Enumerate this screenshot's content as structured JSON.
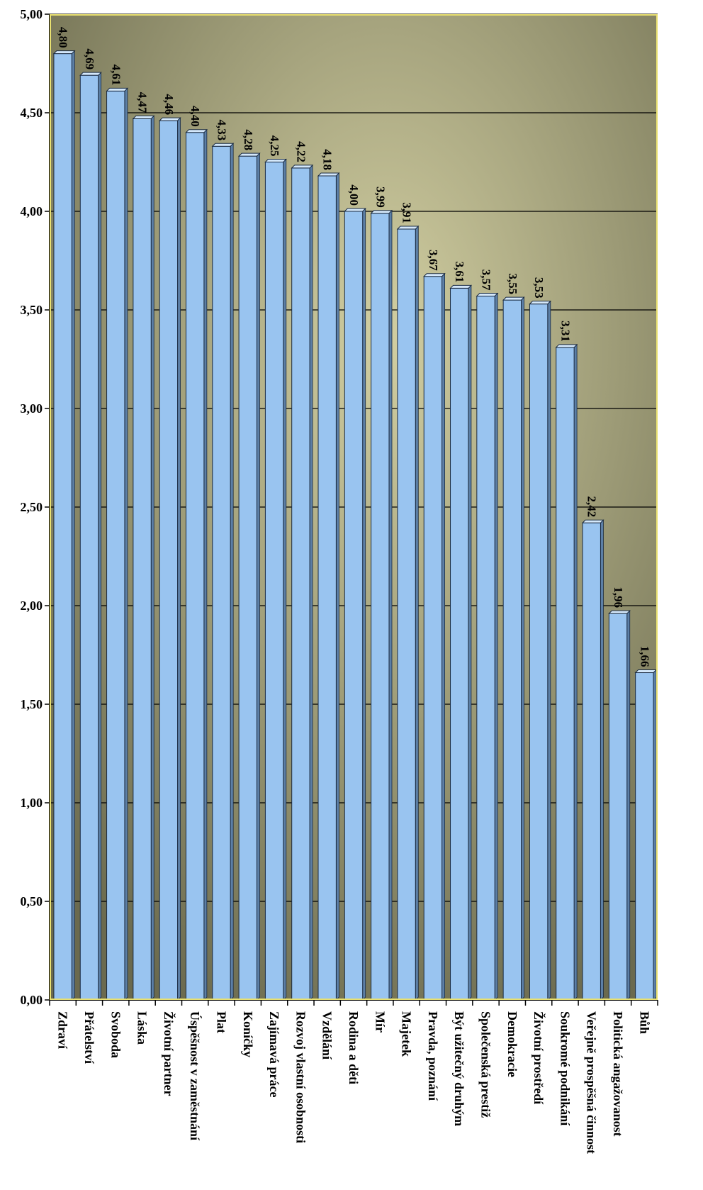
{
  "chart_data": {
    "type": "bar",
    "orientation": "vertical",
    "categories": [
      "Zdraví",
      "Přátelství",
      "Svoboda",
      "Láska",
      "Životní partner",
      "Úspěšnost v zaměstnání",
      "Plat",
      "Koníčky",
      "Zajímavá práce",
      "Rozvoj vlastní osobnosti",
      "Vzdělání",
      "Rodina a děti",
      "Mír",
      "Majetek",
      "Pravda, poznání",
      "Být užitečný druhým",
      "Společenská prestiž",
      "Demokracie",
      "Životní prostředí",
      "Soukromé podnikání",
      "Veřejně prospěšná činnost",
      "Politická angažovanost",
      "Bůh"
    ],
    "values": [
      4.8,
      4.69,
      4.61,
      4.47,
      4.46,
      4.4,
      4.33,
      4.28,
      4.25,
      4.22,
      4.18,
      4.0,
      3.99,
      3.91,
      3.67,
      3.61,
      3.57,
      3.55,
      3.53,
      3.31,
      2.42,
      1.96,
      1.66
    ],
    "data_labels": [
      "4,80",
      "4,69",
      "4,61",
      "4,47",
      "4,46",
      "4,40",
      "4,33",
      "4,28",
      "4,25",
      "4,22",
      "4,18",
      "4,00",
      "3,99",
      "3,91",
      "3,67",
      "3,61",
      "3,57",
      "3,55",
      "3,53",
      "3,31",
      "2,42",
      "1,96",
      "1,66"
    ],
    "yticks": [
      "0,00",
      "0,50",
      "1,00",
      "1,50",
      "2,00",
      "2,50",
      "3,00",
      "3,50",
      "4,00",
      "4,50",
      "5,00"
    ],
    "ylim": [
      0,
      5
    ],
    "grid": true,
    "colors": {
      "bar": "#99c4f0",
      "bar_edge": "#1a2a40",
      "background_light": "#d2cfa2",
      "background_dark": "#6b6a4e",
      "gridline": "#000000",
      "frame": "#e8e070"
    }
  }
}
